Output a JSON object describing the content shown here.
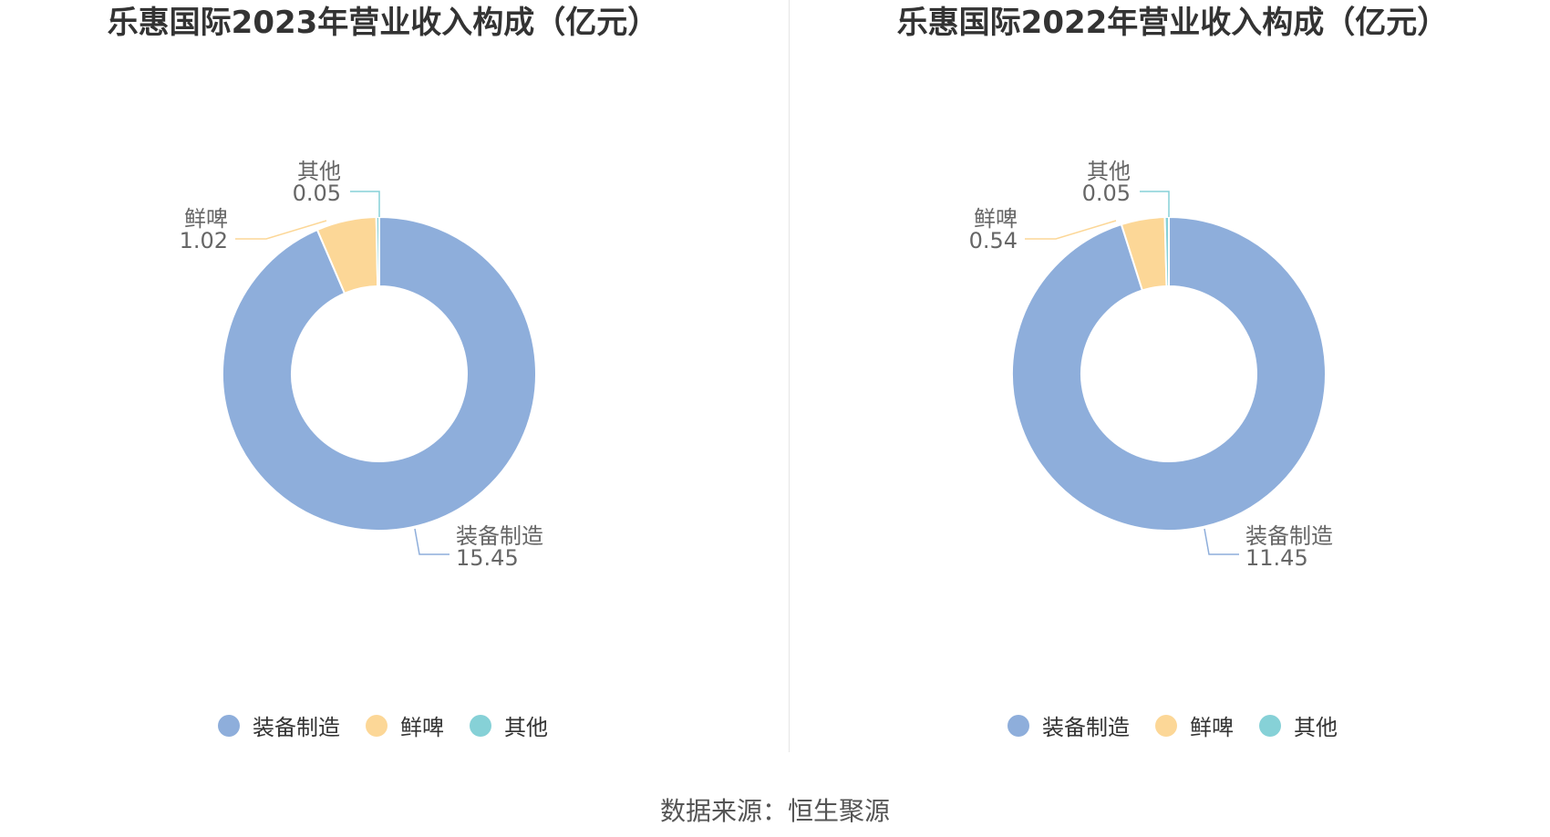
{
  "source_text": "数据来源：恒生聚源",
  "colors": {
    "装备制造": "#8eaedb",
    "鲜啤": "#fcd797",
    "其他": "#86d1d7"
  },
  "chart_data": [
    {
      "type": "pie",
      "donut": true,
      "title": "乐惠国际2023年营业收入构成（亿元）",
      "categories": [
        "装备制造",
        "鲜啤",
        "其他"
      ],
      "values": [
        15.45,
        1.02,
        0.05
      ],
      "value_labels": [
        "15.45",
        "1.02",
        "0.05"
      ],
      "legend": "bottom"
    },
    {
      "type": "pie",
      "donut": true,
      "title": "乐惠国际2022年营业收入构成（亿元）",
      "categories": [
        "装备制造",
        "鲜啤",
        "其他"
      ],
      "values": [
        11.45,
        0.54,
        0.05
      ],
      "value_labels": [
        "11.45",
        "0.54",
        "0.05"
      ],
      "legend": "bottom"
    }
  ]
}
